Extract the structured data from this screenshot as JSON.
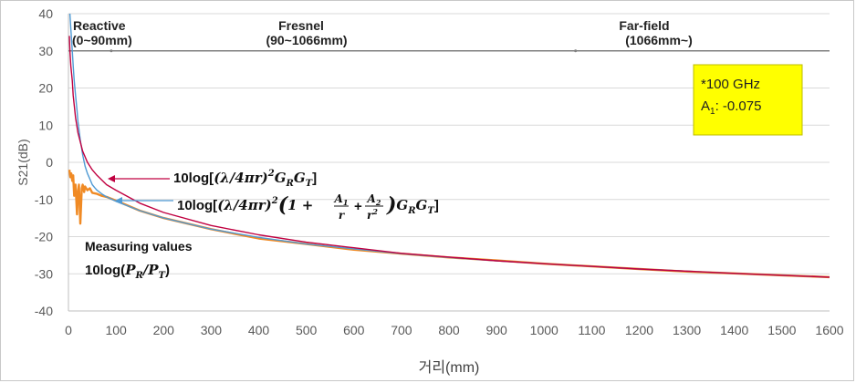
{
  "chart_data": {
    "type": "line",
    "xlabel": "거리(mm)",
    "ylabel": "S21(dB)",
    "xlim": [
      0,
      1600
    ],
    "ylim": [
      -40,
      40
    ],
    "xticks": [
      "0",
      "100",
      "200",
      "300",
      "400",
      "500",
      "600",
      "700",
      "800",
      "900",
      "1000",
      "1100",
      "1200",
      "1300",
      "1400",
      "1500",
      "1600"
    ],
    "yticks": [
      "40",
      "30",
      "20",
      "10",
      "0",
      "-10",
      "-20",
      "-30",
      "-40"
    ],
    "grid": "horizontal",
    "zones": [
      {
        "name": "Reactive",
        "range_label": "(0~90mm)",
        "start": 0,
        "end": 90
      },
      {
        "name": "Fresnel",
        "range_label": "(90~1066mm)",
        "start": 90,
        "end": 1066
      },
      {
        "name": "Far-field",
        "range_label": "(1066mm~)",
        "start": 1066,
        "end": 1600
      }
    ],
    "info_box": {
      "line1": "*100 GHz",
      "line2_var": "A",
      "line2_sub": "1",
      "line2_value": ": -0.075",
      "background": "#ffff00"
    },
    "series": [
      {
        "key": "friis",
        "color": "#c00040",
        "x": [
          2,
          3,
          5,
          8,
          10,
          15,
          20,
          30,
          40,
          50,
          60,
          80,
          100,
          150,
          200,
          300,
          400,
          500,
          600,
          700,
          800,
          900,
          1000,
          1200,
          1400,
          1600
        ],
        "y": [
          34,
          30,
          26,
          22,
          18,
          12,
          8,
          3,
          0,
          -2,
          -3.5,
          -6,
          -7.5,
          -11,
          -13.5,
          -17,
          -19.5,
          -21.5,
          -23,
          -24.5,
          -25.5,
          -26.5,
          -27.3,
          -28.7,
          -29.9,
          -30.9
        ]
      },
      {
        "key": "corrected",
        "color": "#4f9ad4",
        "x": [
          3,
          5,
          8,
          10,
          12,
          15,
          18,
          20,
          25,
          30,
          35,
          40,
          45,
          50,
          55,
          60,
          70,
          80,
          100,
          150,
          200,
          300,
          400,
          500,
          600,
          700,
          800,
          900,
          1000,
          1200,
          1400,
          1600
        ],
        "y": [
          40,
          36,
          30,
          26,
          22,
          18,
          14,
          11,
          6,
          2,
          -1,
          -3,
          -4.5,
          -6,
          -6.8,
          -7.5,
          -8.5,
          -9.3,
          -10.5,
          -13,
          -15,
          -18,
          -20.2,
          -22,
          -23.3,
          -24.6,
          -25.6,
          -26.5,
          -27.3,
          -28.7,
          -29.9,
          -30.9
        ]
      },
      {
        "key": "measured",
        "color": "#f08a24",
        "x": [
          2,
          4,
          6,
          8,
          10,
          12,
          15,
          18,
          20,
          22,
          25,
          28,
          30,
          33,
          35,
          40,
          45,
          50,
          60,
          70,
          80,
          100,
          150,
          200,
          300,
          400,
          500,
          600,
          700,
          800,
          900,
          1000,
          1100,
          1200,
          1300,
          1400,
          1500,
          1600
        ],
        "y": [
          -2,
          -4,
          -3,
          -5,
          -3.5,
          -9,
          -6,
          -14,
          -8,
          -6,
          -16.5,
          -7,
          -6,
          -8,
          -6.5,
          -7.5,
          -7,
          -8.2,
          -8.5,
          -9,
          -9.3,
          -10.3,
          -13,
          -15,
          -18,
          -20.5,
          -22,
          -23.5,
          -24.6,
          -25.6,
          -26.4,
          -27.3,
          -28,
          -28.7,
          -29.4,
          -29.9,
          -30.4,
          -30.9
        ]
      }
    ],
    "annotations": {
      "friis": {
        "prefix": "10log[",
        "lambda": "λ",
        "slash": "/4",
        "pi": "π",
        "r": "r",
        "sq": "2",
        "G1": "G",
        "R": "R",
        "G2": "G",
        "T": "T",
        "close": "]"
      },
      "corrected": {
        "prefix": "10log[",
        "lambda": "λ",
        "slash": "/4",
        "pi": "π",
        "r": "r",
        "sq": "2",
        "one_plus": "1 +",
        "A1": "A",
        "sub1": "1",
        "r1": "r",
        "plus": "+",
        "A2": "A",
        "sub2": "2",
        "r2": "r",
        "sq2": "2",
        "G1": "G",
        "R": "R",
        "G2": "G",
        "T": "T",
        "close": "]"
      },
      "measured": {
        "line1": "Measuring values",
        "line2_prefix": "10log(",
        "P1": "P",
        "R": "R",
        "slash": "/",
        "P2": "P",
        "T": "T",
        "close": ")"
      }
    }
  }
}
